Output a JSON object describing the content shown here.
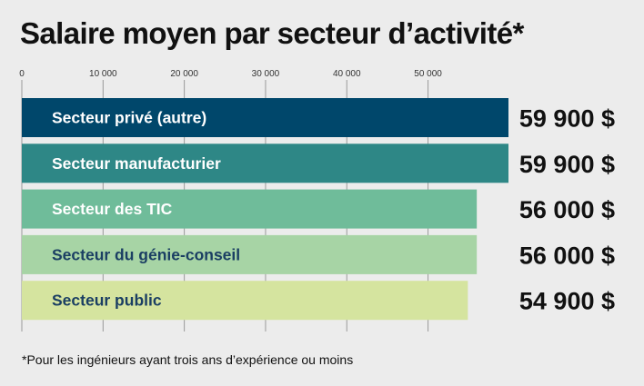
{
  "title": "Salaire moyen par secteur d’activité*",
  "footnote": "*Pour les ingénieurs ayant trois ans d’expérience ou moins",
  "chart_data": {
    "type": "bar",
    "orientation": "horizontal",
    "title": "Salaire moyen par secteur d’activité*",
    "xlabel": "",
    "ylabel": "",
    "xlim": [
      0,
      59900
    ],
    "ticks": [
      0,
      10000,
      20000,
      30000,
      40000,
      50000
    ],
    "tick_labels": [
      "0",
      "10 000",
      "20 000",
      "30 000",
      "40 000",
      "50 000"
    ],
    "grid": true,
    "categories": [
      "Secteur privé (autre)",
      "Secteur manufacturier",
      "Secteur des TIC",
      "Secteur du génie-conseil",
      "Secteur public"
    ],
    "values": [
      59900,
      59900,
      56000,
      56000,
      54900
    ],
    "value_labels": [
      "59 900 $",
      "59 900 $",
      "56 000 $",
      "56 000 $",
      "54 900 $"
    ],
    "colors": [
      "#00476b",
      "#2e8786",
      "#6fbc9a",
      "#a7d4a5",
      "#d5e49f"
    ],
    "label_colors": [
      "#ffffff",
      "#ffffff",
      "#ffffff",
      "#1b3f63",
      "#1b3f63"
    ]
  }
}
